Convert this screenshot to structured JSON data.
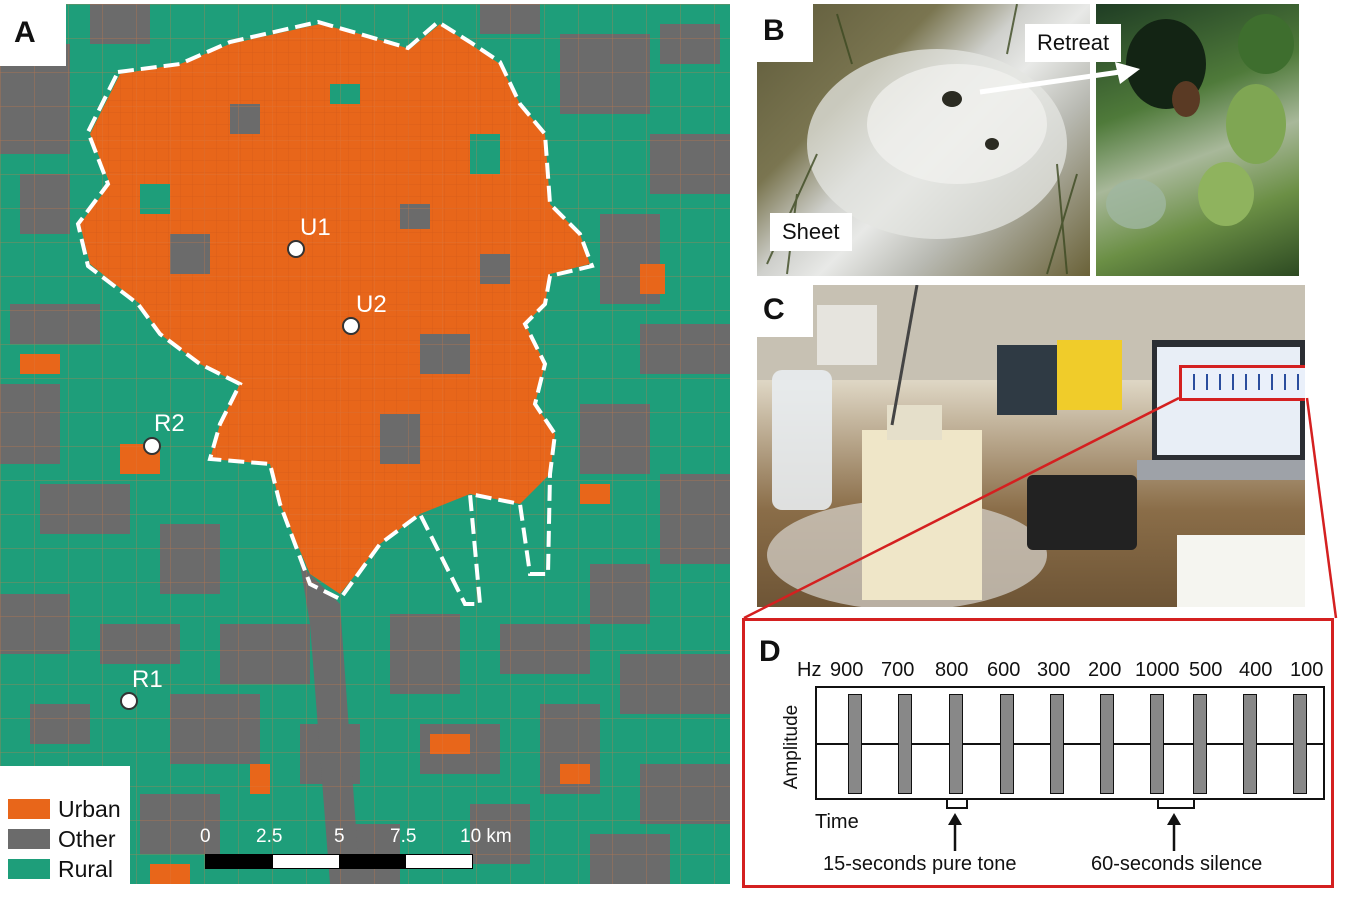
{
  "panels": {
    "a": {
      "label": "A",
      "sites": [
        {
          "id": "U1",
          "label": "U1"
        },
        {
          "id": "U2",
          "label": "U2"
        },
        {
          "id": "R2",
          "label": "R2"
        },
        {
          "id": "R1",
          "label": "R1"
        }
      ],
      "legend": [
        {
          "label": "Urban",
          "color": "#e8661a"
        },
        {
          "label": "Other",
          "color": "#6b6b6b"
        },
        {
          "label": "Rural",
          "color": "#1e9e7a"
        }
      ],
      "scale_ticks": [
        "0",
        "2.5",
        "5",
        "7.5",
        "10 km"
      ],
      "colors": {
        "urban": "#e8661a",
        "other": "#6b6b6b",
        "rural": "#1e9e7a",
        "boundary": "#ffffff"
      }
    },
    "b": {
      "label": "B",
      "sheet_label": "Sheet",
      "retreat_label": "Retreat"
    },
    "c": {
      "label": "C"
    },
    "d": {
      "label": "D",
      "hz_unit": "Hz",
      "frequencies": [
        "900",
        "700",
        "800",
        "600",
        "300",
        "200",
        "1000",
        "500",
        "400",
        "100"
      ],
      "y_label": "Amplitude",
      "x_label": "Time",
      "tone_note": "15-seconds pure tone",
      "silence_note": "60-seconds silence",
      "border_color": "#d42020"
    }
  }
}
